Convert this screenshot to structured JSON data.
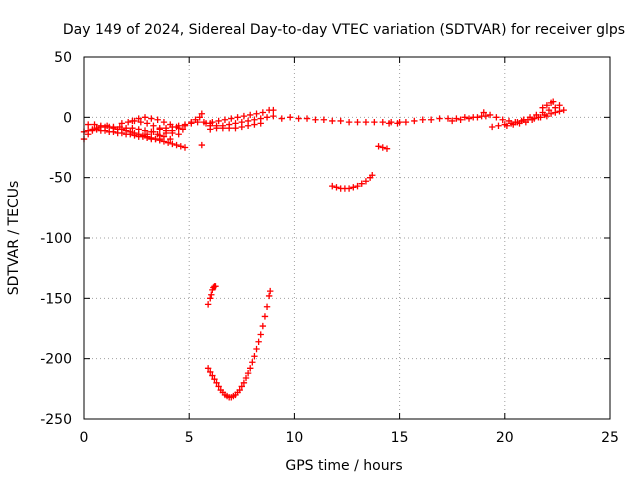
{
  "chart_data": {
    "type": "scatter",
    "title": "Day 149 of 2024, Sidereal Day-to-day VTEC variation (SDTVAR) for receiver glps",
    "xlabel": "GPS time / hours",
    "ylabel": "SDTVAR / TECUs",
    "xlim": [
      0,
      25
    ],
    "ylim": [
      -250,
      50
    ],
    "xticks": [
      0,
      5,
      10,
      15,
      20,
      25
    ],
    "yticks": [
      -250,
      -200,
      -150,
      -100,
      -50,
      0,
      50
    ],
    "xtick_labels": [
      "0",
      "5",
      "10",
      "15",
      "20",
      "25"
    ],
    "ytick_labels": [
      "-250",
      "-200",
      "-150",
      "-100",
      "-50",
      "0",
      "50"
    ],
    "grid": true,
    "marker": "plus",
    "color": "#ff0000",
    "series": [
      {
        "points": [
          [
            0.0,
            -18
          ],
          [
            0.2,
            -14
          ],
          [
            0.4,
            -11
          ],
          [
            0.6,
            -9
          ],
          [
            0.8,
            -8
          ],
          [
            1.0,
            -8
          ],
          [
            1.2,
            -8
          ],
          [
            1.4,
            -9
          ],
          [
            1.6,
            -10
          ],
          [
            1.8,
            -10
          ],
          [
            2.0,
            -11
          ],
          [
            2.2,
            -12
          ],
          [
            2.4,
            -13
          ],
          [
            2.6,
            -14
          ],
          [
            2.8,
            -15
          ],
          [
            3.0,
            -16
          ],
          [
            3.2,
            -17
          ],
          [
            3.4,
            -18
          ],
          [
            3.6,
            -19
          ],
          [
            3.8,
            -20
          ],
          [
            4.0,
            -21
          ],
          [
            4.2,
            -22
          ],
          [
            4.4,
            -23
          ],
          [
            4.6,
            -24
          ],
          [
            4.8,
            -25
          ],
          [
            0.0,
            -12
          ],
          [
            0.2,
            -11
          ],
          [
            0.4,
            -10
          ],
          [
            0.6,
            -10
          ],
          [
            0.8,
            -11
          ],
          [
            1.0,
            -11
          ],
          [
            1.2,
            -12
          ],
          [
            1.4,
            -12
          ],
          [
            1.6,
            -13
          ],
          [
            1.8,
            -13
          ],
          [
            2.0,
            -14
          ],
          [
            2.2,
            -14
          ],
          [
            2.4,
            -15
          ],
          [
            2.6,
            -16
          ],
          [
            2.8,
            -16
          ],
          [
            3.0,
            -17
          ],
          [
            3.2,
            -18
          ],
          [
            3.4,
            -18
          ],
          [
            3.6,
            -18
          ],
          [
            0.2,
            -6
          ],
          [
            0.5,
            -6
          ],
          [
            0.8,
            -7
          ],
          [
            1.1,
            -7
          ],
          [
            1.4,
            -8
          ],
          [
            1.7,
            -8
          ],
          [
            2.0,
            -9
          ],
          [
            2.3,
            -9
          ],
          [
            2.6,
            -10
          ],
          [
            2.9,
            -11
          ],
          [
            3.2,
            -12
          ],
          [
            3.5,
            -14
          ],
          [
            3.8,
            -16
          ],
          [
            4.1,
            -18
          ],
          [
            1.8,
            -5
          ],
          [
            2.1,
            -4
          ],
          [
            2.4,
            -3
          ],
          [
            2.7,
            -4
          ],
          [
            3.0,
            -5
          ],
          [
            3.3,
            -7
          ],
          [
            3.6,
            -9
          ],
          [
            3.9,
            -11
          ],
          [
            4.2,
            -13
          ],
          [
            4.5,
            -14
          ],
          [
            2.3,
            -3
          ],
          [
            2.6,
            -1
          ],
          [
            2.9,
            0
          ],
          [
            3.2,
            -1
          ],
          [
            3.5,
            -2
          ],
          [
            3.8,
            -4
          ],
          [
            4.1,
            -6
          ],
          [
            4.4,
            -8
          ],
          [
            4.7,
            -10
          ],
          [
            3.0,
            -14
          ],
          [
            3.3,
            -12
          ],
          [
            3.6,
            -10
          ],
          [
            3.9,
            -9
          ],
          [
            4.2,
            -8
          ],
          [
            4.5,
            -7
          ],
          [
            4.8,
            -6
          ],
          [
            5.1,
            -5
          ],
          [
            5.4,
            -4
          ],
          [
            5.7,
            -4
          ],
          [
            6.0,
            -5
          ],
          [
            3.6,
            -15
          ],
          [
            3.9,
            -13
          ],
          [
            4.2,
            -11
          ],
          [
            4.5,
            -9
          ],
          [
            4.8,
            -7
          ],
          [
            5.1,
            -4
          ],
          [
            5.3,
            -2
          ],
          [
            5.5,
            0
          ],
          [
            5.6,
            3
          ],
          [
            5.6,
            -23
          ],
          [
            5.9,
            -155
          ],
          [
            6.0,
            -150
          ],
          [
            6.05,
            -147
          ],
          [
            6.1,
            -143
          ],
          [
            6.15,
            -141
          ],
          [
            6.2,
            -140
          ],
          [
            6.25,
            -140
          ],
          [
            5.8,
            -5
          ],
          [
            6.1,
            -4
          ],
          [
            6.4,
            -3
          ],
          [
            6.7,
            -2
          ],
          [
            7.0,
            -1
          ],
          [
            7.3,
            0
          ],
          [
            7.6,
            1
          ],
          [
            7.9,
            2
          ],
          [
            8.2,
            3
          ],
          [
            8.5,
            4
          ],
          [
            8.8,
            6
          ],
          [
            9.0,
            6
          ],
          [
            6.0,
            -7
          ],
          [
            6.3,
            -7
          ],
          [
            6.6,
            -7
          ],
          [
            6.9,
            -6
          ],
          [
            7.2,
            -5
          ],
          [
            7.5,
            -4
          ],
          [
            7.8,
            -3
          ],
          [
            8.1,
            -2
          ],
          [
            8.4,
            -1
          ],
          [
            8.7,
            0
          ],
          [
            9.0,
            1
          ],
          [
            6.0,
            -10
          ],
          [
            6.3,
            -9
          ],
          [
            6.6,
            -9
          ],
          [
            6.9,
            -9
          ],
          [
            7.2,
            -9
          ],
          [
            7.5,
            -8
          ],
          [
            7.8,
            -7
          ],
          [
            8.1,
            -6
          ],
          [
            8.4,
            -5
          ],
          [
            5.9,
            -208
          ],
          [
            6.0,
            -211
          ],
          [
            6.1,
            -214
          ],
          [
            6.2,
            -217
          ],
          [
            6.3,
            -220
          ],
          [
            6.4,
            -223
          ],
          [
            6.5,
            -226
          ],
          [
            6.6,
            -228
          ],
          [
            6.7,
            -230
          ],
          [
            6.8,
            -231
          ],
          [
            6.9,
            -232
          ],
          [
            7.0,
            -232
          ],
          [
            7.1,
            -231
          ],
          [
            7.2,
            -230
          ],
          [
            7.3,
            -228
          ],
          [
            7.4,
            -226
          ],
          [
            7.5,
            -223
          ],
          [
            7.6,
            -220
          ],
          [
            7.7,
            -216
          ],
          [
            7.8,
            -212
          ],
          [
            7.9,
            -208
          ],
          [
            8.0,
            -203
          ],
          [
            8.1,
            -198
          ],
          [
            8.2,
            -192
          ],
          [
            8.3,
            -186
          ],
          [
            8.4,
            -180
          ],
          [
            8.5,
            -173
          ],
          [
            8.6,
            -165
          ],
          [
            8.7,
            -157
          ],
          [
            8.8,
            -148
          ],
          [
            8.85,
            -144
          ],
          [
            9.4,
            -1
          ],
          [
            9.8,
            0
          ],
          [
            10.2,
            -1
          ],
          [
            10.6,
            -1
          ],
          [
            11.0,
            -2
          ],
          [
            11.4,
            -2
          ],
          [
            11.8,
            -3
          ],
          [
            12.2,
            -3
          ],
          [
            12.6,
            -4
          ],
          [
            13.0,
            -4
          ],
          [
            13.4,
            -4
          ],
          [
            13.8,
            -4
          ],
          [
            14.2,
            -4
          ],
          [
            14.6,
            -4
          ],
          [
            15.0,
            -4
          ],
          [
            11.8,
            -57
          ],
          [
            12.0,
            -58
          ],
          [
            12.2,
            -59
          ],
          [
            12.4,
            -59
          ],
          [
            12.6,
            -59
          ],
          [
            12.8,
            -58
          ],
          [
            13.0,
            -57
          ],
          [
            13.2,
            -55
          ],
          [
            13.4,
            -53
          ],
          [
            13.6,
            -50
          ],
          [
            13.7,
            -48
          ],
          [
            14.0,
            -24
          ],
          [
            14.2,
            -25
          ],
          [
            14.4,
            -26
          ],
          [
            14.5,
            -5
          ],
          [
            14.9,
            -5
          ],
          [
            15.3,
            -4
          ],
          [
            15.7,
            -3
          ],
          [
            16.1,
            -2
          ],
          [
            16.5,
            -2
          ],
          [
            16.9,
            -1
          ],
          [
            17.3,
            -1
          ],
          [
            17.7,
            -1
          ],
          [
            18.1,
            0
          ],
          [
            18.5,
            0
          ],
          [
            18.9,
            1
          ],
          [
            17.5,
            -3
          ],
          [
            17.9,
            -2
          ],
          [
            18.3,
            -1
          ],
          [
            18.7,
            0
          ],
          [
            19.1,
            1
          ],
          [
            19.0,
            4
          ],
          [
            19.3,
            2
          ],
          [
            19.6,
            0
          ],
          [
            19.9,
            -2
          ],
          [
            20.2,
            -3
          ],
          [
            20.5,
            -4
          ],
          [
            20.8,
            -3
          ],
          [
            21.1,
            -2
          ],
          [
            21.4,
            -1
          ],
          [
            21.7,
            0
          ],
          [
            22.0,
            1
          ],
          [
            19.4,
            -8
          ],
          [
            19.7,
            -7
          ],
          [
            20.0,
            -6
          ],
          [
            20.3,
            -5
          ],
          [
            20.6,
            -4
          ],
          [
            20.9,
            -2
          ],
          [
            21.2,
            0
          ],
          [
            21.5,
            2
          ],
          [
            21.8,
            4
          ],
          [
            22.1,
            6
          ],
          [
            22.4,
            8
          ],
          [
            22.6,
            10
          ],
          [
            20.1,
            -7
          ],
          [
            20.4,
            -6
          ],
          [
            20.7,
            -5
          ],
          [
            21.0,
            -4
          ],
          [
            21.3,
            -2
          ],
          [
            21.6,
            0
          ],
          [
            21.9,
            2
          ],
          [
            22.2,
            3
          ],
          [
            21.8,
            8
          ],
          [
            22.0,
            10
          ],
          [
            22.2,
            12
          ],
          [
            22.3,
            13
          ],
          [
            22.4,
            4
          ],
          [
            22.6,
            5
          ],
          [
            22.8,
            6
          ]
        ]
      }
    ]
  }
}
